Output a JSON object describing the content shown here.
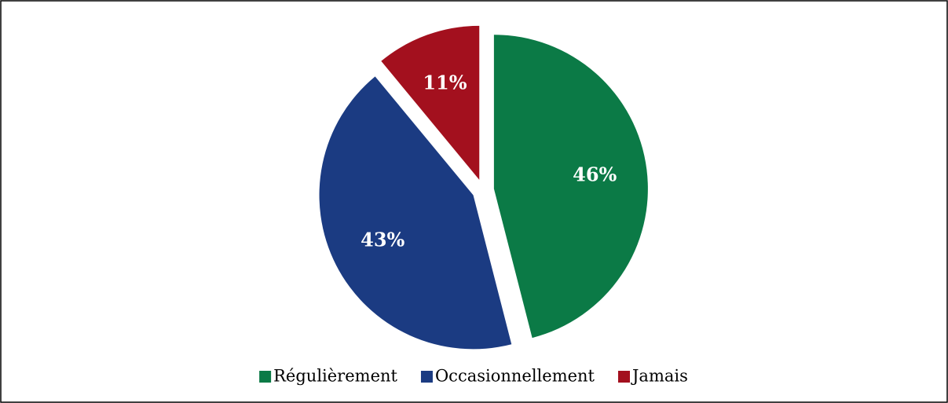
{
  "chart_data": {
    "type": "pie",
    "categories": [
      "Régulièrement",
      "Occasionnellement",
      "Jamais"
    ],
    "values": [
      46,
      43,
      11
    ],
    "value_labels": [
      "46%",
      "43%",
      "11%"
    ],
    "colors": [
      "#0b7a46",
      "#1b3b82",
      "#a3101e"
    ],
    "legend": "bottom"
  }
}
